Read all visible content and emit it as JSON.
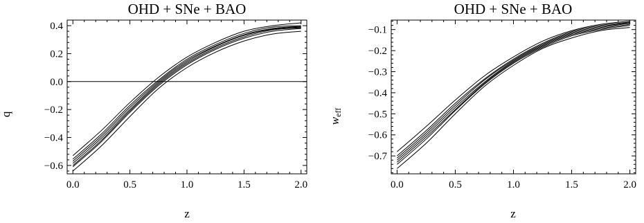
{
  "chart_data": [
    {
      "type": "line",
      "title": "OHD + SNe + BAO",
      "xlabel": "z",
      "ylabel": "q",
      "xlim": [
        -0.05,
        2.05
      ],
      "ylim": [
        -0.66,
        0.44
      ],
      "xticks": [
        "0.0",
        "0.5",
        "1.0",
        "1.5",
        "2.0"
      ],
      "yticks": [
        "0.4",
        "0.2",
        "0.0",
        "−0.2",
        "−0.4",
        "−0.6"
      ],
      "reference_line_y": 0.0,
      "x": [
        0.0,
        0.25,
        0.5,
        0.75,
        1.0,
        1.25,
        1.5,
        1.75,
        2.0
      ],
      "series": [
        {
          "values": [
            -0.64,
            -0.46,
            -0.25,
            -0.05,
            0.1,
            0.21,
            0.29,
            0.34,
            0.36
          ]
        },
        {
          "values": [
            -0.61,
            -0.43,
            -0.22,
            -0.03,
            0.12,
            0.23,
            0.31,
            0.36,
            0.38
          ]
        },
        {
          "values": [
            -0.6,
            -0.42,
            -0.21,
            -0.02,
            0.13,
            0.24,
            0.32,
            0.37,
            0.385
          ]
        },
        {
          "values": [
            -0.585,
            -0.405,
            -0.2,
            -0.01,
            0.14,
            0.25,
            0.33,
            0.375,
            0.39
          ]
        },
        {
          "values": [
            -0.57,
            -0.39,
            -0.185,
            0.0,
            0.15,
            0.255,
            0.335,
            0.38,
            0.395
          ]
        },
        {
          "values": [
            -0.555,
            -0.375,
            -0.17,
            0.01,
            0.16,
            0.265,
            0.345,
            0.39,
            0.4
          ]
        },
        {
          "values": [
            -0.53,
            -0.35,
            -0.15,
            0.03,
            0.175,
            0.28,
            0.36,
            0.4,
            0.42
          ]
        }
      ]
    },
    {
      "type": "line",
      "title": "OHD + SNe + BAO",
      "xlabel": "z",
      "ylabel": "w",
      "ylabel_subscript": "eff",
      "xlim": [
        -0.05,
        2.05
      ],
      "ylim": [
        -0.785,
        -0.055
      ],
      "xticks": [
        "0.0",
        "0.5",
        "1.0",
        "1.5",
        "2.0"
      ],
      "yticks": [
        "−0.1",
        "−0.2",
        "−0.3",
        "−0.4",
        "−0.5",
        "−0.6",
        "−0.7"
      ],
      "x": [
        0.0,
        0.25,
        0.5,
        0.75,
        1.0,
        1.25,
        1.5,
        1.75,
        2.0
      ],
      "series": [
        {
          "values": [
            -0.76,
            -0.64,
            -0.5,
            -0.37,
            -0.27,
            -0.19,
            -0.14,
            -0.105,
            -0.09
          ]
        },
        {
          "values": [
            -0.74,
            -0.62,
            -0.485,
            -0.36,
            -0.26,
            -0.185,
            -0.13,
            -0.1,
            -0.08
          ]
        },
        {
          "values": [
            -0.73,
            -0.61,
            -0.48,
            -0.355,
            -0.255,
            -0.18,
            -0.125,
            -0.095,
            -0.075
          ]
        },
        {
          "values": [
            -0.72,
            -0.6,
            -0.47,
            -0.35,
            -0.25,
            -0.175,
            -0.12,
            -0.09,
            -0.07
          ]
        },
        {
          "values": [
            -0.71,
            -0.59,
            -0.46,
            -0.34,
            -0.245,
            -0.17,
            -0.115,
            -0.085,
            -0.068
          ]
        },
        {
          "values": [
            -0.7,
            -0.58,
            -0.45,
            -0.335,
            -0.24,
            -0.165,
            -0.11,
            -0.08,
            -0.065
          ]
        },
        {
          "values": [
            -0.68,
            -0.56,
            -0.435,
            -0.32,
            -0.23,
            -0.155,
            -0.105,
            -0.075,
            -0.06
          ]
        }
      ]
    }
  ]
}
